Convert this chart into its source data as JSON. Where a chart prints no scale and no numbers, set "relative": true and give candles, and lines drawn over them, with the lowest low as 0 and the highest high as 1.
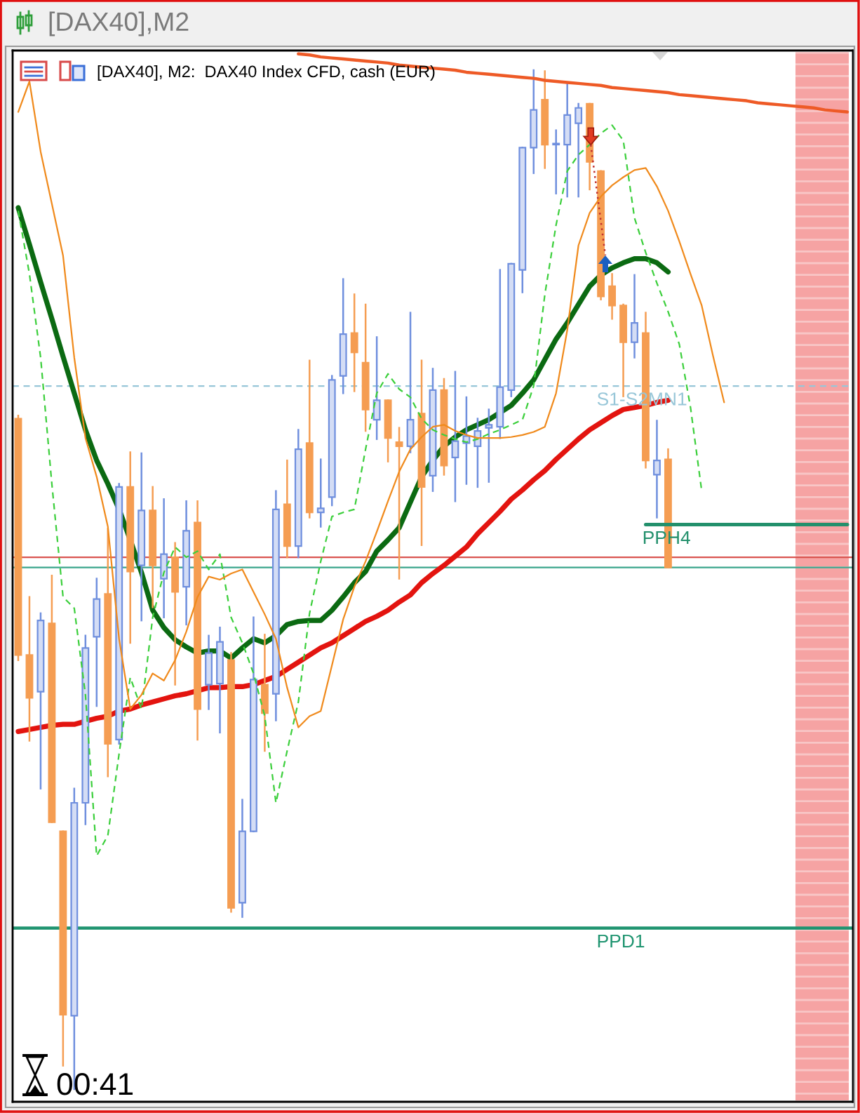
{
  "chart_data": {
    "type": "candlestick",
    "relative": true,
    "title": "[DAX40],M2",
    "subtitle": "[DAX40], M2:  DAX40 Index CFD, cash (EUR)",
    "annotations": [
      "00:41"
    ],
    "categories": [
      null,
      null,
      null,
      null,
      null,
      null,
      null,
      null,
      null,
      null,
      null,
      null,
      null,
      null,
      null,
      null,
      null,
      null,
      null,
      null,
      null,
      null,
      null,
      null,
      null,
      null,
      null,
      null,
      null,
      null,
      null,
      null,
      null,
      null,
      null,
      null,
      null,
      null,
      null,
      null,
      null,
      null,
      null,
      null,
      null,
      null,
      null,
      null,
      null,
      null,
      null,
      null,
      null,
      null,
      null,
      null,
      null,
      null,
      null,
      null,
      null,
      null,
      null,
      null,
      null,
      null,
      null,
      null,
      null,
      null,
      null,
      null,
      null,
      null,
      null
    ],
    "ohlc": [
      [
        0.658,
        0.661,
        0.421,
        0.426
      ],
      [
        0.426,
        0.483,
        0.342,
        0.384
      ],
      [
        0.39,
        0.467,
        0.295,
        0.46
      ],
      [
        0.457,
        0.504,
        0.262,
        0.262
      ],
      [
        0.253,
        0.253,
        0.023,
        0.073
      ],
      [
        0.072,
        0.295,
        0.0,
        0.281
      ],
      [
        0.281,
        0.445,
        0.26,
        0.433
      ],
      [
        0.444,
        0.501,
        0.376,
        0.481
      ],
      [
        0.486,
        0.55,
        0.307,
        0.339
      ],
      [
        0.343,
        0.594,
        0.339,
        0.591
      ],
      [
        0.591,
        0.625,
        0.438,
        0.508
      ],
      [
        0.514,
        0.624,
        0.46,
        0.568
      ],
      [
        0.568,
        0.591,
        0.473,
        0.514
      ],
      [
        0.501,
        0.579,
        0.463,
        0.525
      ],
      [
        0.522,
        0.536,
        0.397,
        0.488
      ],
      [
        0.493,
        0.577,
        0.456,
        0.548
      ],
      [
        0.556,
        0.577,
        0.343,
        0.373
      ],
      [
        0.397,
        0.445,
        0.373,
        0.428
      ],
      [
        0.398,
        0.453,
        0.35,
        0.439
      ],
      [
        0.421,
        0.428,
        0.174,
        0.178
      ],
      [
        0.183,
        0.284,
        0.169,
        0.253
      ],
      [
        0.253,
        0.463,
        0.253,
        0.402
      ],
      [
        0.397,
        0.446,
        0.332,
        0.369
      ],
      [
        0.388,
        0.587,
        0.362,
        0.569
      ],
      [
        0.574,
        0.617,
        0.522,
        0.533
      ],
      [
        0.533,
        0.647,
        0.522,
        0.628
      ],
      [
        0.634,
        0.715,
        0.561,
        0.566
      ],
      [
        0.566,
        0.618,
        0.552,
        0.57
      ],
      [
        0.581,
        0.7,
        0.573,
        0.696
      ],
      [
        0.7,
        0.795,
        0.683,
        0.741
      ],
      [
        0.742,
        0.78,
        0.685,
        0.723
      ],
      [
        0.713,
        0.77,
        0.646,
        0.667
      ],
      [
        0.657,
        0.738,
        0.638,
        0.676
      ],
      [
        0.676,
        0.676,
        0.616,
        0.639
      ],
      [
        0.635,
        0.649,
        0.501,
        0.631
      ],
      [
        0.631,
        0.762,
        0.625,
        0.657
      ],
      [
        0.663,
        0.715,
        0.534,
        0.591
      ],
      [
        0.602,
        0.707,
        0.587,
        0.686
      ],
      [
        0.686,
        0.697,
        0.603,
        0.612
      ],
      [
        0.62,
        0.704,
        0.577,
        0.636
      ],
      [
        0.634,
        0.679,
        0.594,
        0.641
      ],
      [
        0.631,
        0.658,
        0.591,
        0.646
      ],
      [
        0.649,
        0.667,
        0.596,
        0.652
      ],
      [
        0.65,
        0.804,
        0.639,
        0.689
      ],
      [
        0.686,
        0.81,
        0.68,
        0.81
      ],
      [
        0.804,
        0.924,
        0.782,
        0.924
      ],
      [
        0.924,
        1.0,
        0.899,
        0.961
      ],
      [
        0.971,
        0.999,
        0.904,
        0.927
      ],
      [
        0.927,
        0.941,
        0.879,
        0.928
      ],
      [
        0.927,
        0.986,
        0.876,
        0.956
      ],
      [
        0.948,
        0.967,
        0.876,
        0.963
      ],
      [
        0.967,
        0.967,
        0.883,
        0.91
      ],
      [
        0.901,
        0.901,
        0.775,
        0.778
      ],
      [
        0.788,
        0.8,
        0.756,
        0.769
      ],
      [
        0.769,
        0.77,
        0.68,
        0.733
      ],
      [
        0.733,
        0.799,
        0.718,
        0.752
      ],
      [
        0.742,
        0.762,
        0.61,
        0.617
      ],
      [
        0.603,
        0.656,
        0.561,
        0.617
      ],
      [
        0.618,
        0.628,
        0.512,
        0.512
      ],
      null,
      null,
      null,
      null,
      null,
      null,
      null,
      null,
      null,
      null,
      null,
      null,
      null,
      null,
      null,
      null
    ],
    "colors": [
      "#f59d52",
      "#f59d52",
      "#6f8fde",
      "#f59d52",
      "#f59d52",
      "#6f8fde",
      "#6f8fde",
      "#6f8fde",
      "#f59d52",
      "#6f8fde",
      "#f59d52",
      "#6f8fde",
      "#f59d52",
      "#6f8fde",
      "#f59d52",
      "#6f8fde",
      "#f59d52",
      "#6f8fde",
      "#6f8fde",
      "#f59d52",
      "#6f8fde",
      "#6f8fde",
      "#f59d52",
      "#6f8fde",
      "#f59d52",
      "#6f8fde",
      "#f59d52",
      "#6f8fde",
      "#6f8fde",
      "#6f8fde",
      "#f59d52",
      "#f59d52",
      "#6f8fde",
      "#f59d52",
      "#f59d52",
      "#6f8fde",
      "#f59d52",
      "#6f8fde",
      "#f59d52",
      "#6f8fde",
      "#6f8fde",
      "#6f8fde",
      "#6f8fde",
      "#6f8fde",
      "#6f8fde",
      "#6f8fde",
      "#6f8fde",
      "#f59d52",
      "#6f8fde",
      "#6f8fde",
      "#6f8fde",
      "#f59d52",
      "#f59d52",
      "#f59d52",
      "#f59d52",
      "#6f8fde",
      "#f59d52",
      "#6f8fde",
      "#f59d52",
      null,
      null,
      null,
      null,
      null,
      null,
      null,
      null,
      null,
      null,
      null,
      null,
      null,
      null,
      null,
      null
    ],
    "series": [
      {
        "type": "line",
        "color": "#0b6a12",
        "values": [
          0.865,
          0.829,
          0.792,
          0.756,
          0.719,
          0.683,
          0.647,
          0.617,
          0.594,
          0.569,
          0.539,
          0.507,
          0.47,
          0.453,
          0.441,
          0.434,
          0.428,
          0.43,
          0.43,
          0.423,
          0.433,
          0.442,
          0.438,
          0.445,
          0.456,
          0.459,
          0.46,
          0.46,
          0.47,
          0.483,
          0.497,
          0.508,
          0.528,
          0.539,
          0.551,
          0.576,
          0.601,
          0.617,
          0.631,
          0.64,
          0.647,
          0.652,
          0.657,
          0.664,
          0.671,
          0.683,
          0.696,
          0.716,
          0.736,
          0.752,
          0.77,
          0.788,
          0.799,
          0.806,
          0.811,
          0.815,
          0.815,
          0.811,
          0.802,
          null,
          null,
          null,
          null,
          null,
          null,
          null,
          null,
          null,
          null,
          null,
          null,
          null,
          null,
          null,
          null
        ]
      },
      {
        "type": "line",
        "color": "#e3140f",
        "values": [
          0.351,
          0.353,
          0.355,
          0.357,
          0.358,
          0.358,
          0.361,
          0.364,
          0.366,
          0.371,
          0.373,
          0.377,
          0.38,
          0.383,
          0.386,
          0.388,
          0.391,
          0.394,
          0.394,
          0.395,
          0.395,
          0.397,
          0.401,
          0.405,
          0.412,
          0.419,
          0.426,
          0.433,
          0.438,
          0.445,
          0.452,
          0.459,
          0.464,
          0.47,
          0.478,
          0.485,
          0.497,
          0.506,
          0.514,
          0.523,
          0.532,
          0.545,
          0.556,
          0.567,
          0.579,
          0.588,
          0.598,
          0.607,
          0.618,
          0.628,
          0.638,
          0.647,
          0.654,
          0.661,
          0.667,
          0.669,
          0.671,
          0.674,
          0.676,
          null,
          null,
          null,
          null,
          null,
          null,
          null,
          null,
          null,
          null,
          null,
          null,
          null,
          null,
          null,
          null
        ]
      },
      {
        "type": "line",
        "color": "#3ccf3c",
        "line_style": "dashed",
        "values": [
          0.862,
          0.8,
          0.718,
          0.594,
          0.483,
          0.472,
          0.387,
          0.229,
          0.249,
          0.329,
          0.404,
          0.373,
          0.463,
          0.507,
          0.532,
          0.522,
          0.528,
          0.51,
          0.525,
          0.463,
          0.438,
          0.408,
          0.366,
          0.281,
          0.332,
          0.38,
          0.467,
          0.518,
          0.562,
          0.566,
          0.569,
          0.628,
          0.683,
          0.702,
          0.687,
          0.679,
          0.658,
          0.647,
          0.642,
          0.638,
          0.635,
          0.638,
          0.643,
          0.647,
          0.652,
          0.657,
          0.69,
          0.78,
          0.848,
          0.901,
          0.917,
          0.927,
          0.938,
          0.946,
          0.931,
          0.855,
          0.821,
          0.791,
          0.763,
          0.731,
          0.669,
          0.587,
          null,
          null,
          null,
          null,
          null,
          null,
          null,
          null,
          null,
          null,
          null,
          null,
          null
        ]
      },
      {
        "type": "line",
        "color": "#f08a1c",
        "values": [
          0.959,
          0.989,
          0.92,
          0.869,
          0.818,
          0.718,
          0.639,
          0.601,
          0.552,
          0.442,
          0.373,
          0.387,
          0.408,
          0.401,
          0.421,
          0.449,
          0.483,
          0.503,
          0.5,
          0.506,
          0.51,
          0.488,
          0.466,
          0.442,
          0.394,
          0.355,
          0.366,
          0.371,
          0.416,
          0.461,
          0.493,
          0.518,
          0.547,
          0.577,
          0.606,
          0.628,
          0.64,
          0.65,
          0.652,
          0.646,
          0.642,
          0.639,
          0.639,
          0.639,
          0.64,
          0.642,
          0.645,
          0.65,
          0.683,
          0.745,
          0.828,
          0.86,
          0.876,
          0.887,
          0.895,
          0.902,
          0.904,
          0.886,
          0.862,
          0.832,
          0.8,
          0.769,
          0.72,
          0.674,
          null,
          null,
          null,
          null,
          null,
          null,
          null,
          null,
          null,
          null,
          null
        ]
      },
      {
        "type": "line",
        "color": "#ee5a26",
        "values": [
          null,
          null,
          null,
          null,
          null,
          null,
          null,
          null,
          null,
          null,
          null,
          null,
          null,
          null,
          null,
          null,
          null,
          null,
          null,
          null,
          null,
          null,
          null,
          null,
          null,
          1.016,
          1.015,
          1.013,
          1.012,
          1.011,
          1.01,
          1.009,
          1.008,
          1.007,
          1.005,
          1.004,
          1.003,
          1.002,
          1.001,
          1.0,
          0.998,
          0.997,
          0.996,
          0.995,
          0.994,
          0.993,
          0.992,
          0.99,
          0.989,
          0.988,
          0.987,
          0.986,
          0.985,
          0.983,
          0.982,
          0.981,
          0.98,
          0.979,
          0.978,
          0.976,
          0.975,
          0.974,
          0.973,
          0.972,
          0.971,
          0.97,
          0.968,
          0.967,
          0.966,
          0.965,
          0.964,
          0.963,
          0.961,
          0.96,
          0.959
        ]
      },
      {
        "type": "line",
        "name": "PPH4",
        "color": "#23906c",
        "values": [
          null,
          null,
          null,
          null,
          null,
          null,
          null,
          null,
          null,
          null,
          null,
          null,
          null,
          null,
          null,
          null,
          null,
          null,
          null,
          null,
          null,
          null,
          null,
          null,
          null,
          null,
          null,
          null,
          null,
          null,
          null,
          null,
          null,
          null,
          null,
          null,
          null,
          null,
          null,
          null,
          null,
          null,
          null,
          null,
          null,
          null,
          null,
          null,
          null,
          null,
          null,
          null,
          null,
          null,
          null,
          null,
          0.554,
          0.554,
          0.554,
          0.554,
          0.554,
          0.554,
          0.554,
          0.554,
          0.554,
          0.554,
          0.554,
          0.554,
          0.554,
          0.554,
          0.554,
          0.554,
          0.554,
          0.554,
          0.554
        ]
      }
    ],
    "ref_lines": [
      {
        "axis": "y",
        "value": 0.69,
        "label": "S1-S2MN1",
        "color": "#97c6d8",
        "line_style": "dashed"
      },
      {
        "axis": "y",
        "value": 0.522,
        "color": "#d9534f"
      },
      {
        "axis": "y",
        "value": 0.512,
        "color": "#3aa58c"
      },
      {
        "axis": "y",
        "value": 0.158,
        "label": "PPD1",
        "color": "#1f9470"
      }
    ]
  }
}
